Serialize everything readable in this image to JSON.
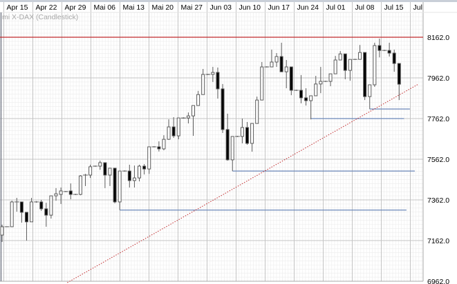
{
  "chart_data": {
    "type": "candlestick",
    "title": "mi X-DAX (Candlestick)",
    "x_tick_labels": [
      "Apr 15",
      "Apr 22",
      "Apr 29",
      "Mai 06",
      "Mai 13",
      "Mai 20",
      "Mai 27",
      "Jun 03",
      "Jun 10",
      "Jun 17",
      "Jun 24",
      "Jul 01",
      "Jul 08",
      "Jul 15",
      "Jul"
    ],
    "y_tick_labels": [
      "8162.0",
      "7962.0",
      "7762.0",
      "7562.0",
      "7362.0",
      "7162.0",
      "6962.0"
    ],
    "y_ticks": [
      8162,
      7962,
      7762,
      7562,
      7362,
      7162,
      6962
    ],
    "ylim": [
      6950,
      8280
    ],
    "grid": true,
    "candle_fields": [
      "open",
      "high",
      "low",
      "close"
    ],
    "candles": [
      [
        7189,
        7240,
        7155,
        7230
      ],
      [
        7230,
        7232,
        7228,
        7230
      ],
      [
        7230,
        7358,
        7228,
        7352
      ],
      [
        7352,
        7372,
        7304,
        7352
      ],
      [
        7352,
        7352,
        7250,
        7301
      ],
      [
        7301,
        7301,
        7162,
        7254
      ],
      [
        7254,
        7372,
        7254,
        7352
      ],
      [
        7352,
        7356,
        7348,
        7352
      ],
      [
        7352,
        7362,
        7308,
        7318
      ],
      [
        7318,
        7348,
        7230,
        7287
      ],
      [
        7287,
        7382,
        7270,
        7382
      ],
      [
        7382,
        7420,
        7358,
        7392
      ],
      [
        7389,
        7423,
        7342,
        7406
      ],
      [
        7403,
        7406,
        7400,
        7403
      ],
      [
        7406,
        7443,
        7365,
        7389
      ],
      [
        7389,
        7392,
        7386,
        7389
      ],
      [
        7389,
        7484,
        7385,
        7480
      ],
      [
        7484,
        7490,
        7430,
        7484
      ],
      [
        7484,
        7535,
        7470,
        7525
      ],
      [
        7528,
        7531,
        7525,
        7528
      ],
      [
        7528,
        7555,
        7510,
        7545
      ],
      [
        7545,
        7545,
        7420,
        7484
      ],
      [
        7484,
        7518,
        7430,
        7518
      ],
      [
        7518,
        7518,
        7345,
        7352
      ],
      [
        7352,
        7504,
        7312,
        7504
      ],
      [
        7504,
        7507,
        7501,
        7504
      ],
      [
        7504,
        7535,
        7423,
        7457
      ],
      [
        7457,
        7531,
        7423,
        7470
      ],
      [
        7470,
        7535,
        7453,
        7528
      ],
      [
        7528,
        7538,
        7487,
        7514
      ],
      [
        7514,
        7623,
        7490,
        7623
      ],
      [
        7623,
        7626,
        7620,
        7623
      ],
      [
        7623,
        7650,
        7600,
        7613
      ],
      [
        7613,
        7680,
        7606,
        7660
      ],
      [
        7660,
        7758,
        7657,
        7721
      ],
      [
        7721,
        7769,
        7667,
        7677
      ],
      [
        7677,
        7765,
        7660,
        7765
      ],
      [
        7765,
        7768,
        7762,
        7765
      ],
      [
        7765,
        7792,
        7738,
        7775
      ],
      [
        7775,
        7826,
        7677,
        7826
      ],
      [
        7826,
        7898,
        7826,
        7880
      ],
      [
        7880,
        8006,
        7880,
        7979
      ],
      [
        7979,
        7982,
        7976,
        7979
      ],
      [
        7979,
        8016,
        7942,
        7989
      ],
      [
        7989,
        8013,
        7860,
        7908
      ],
      [
        7908,
        7932,
        7691,
        7708
      ],
      [
        7708,
        7786,
        7555,
        7559
      ],
      [
        7559,
        7674,
        7504,
        7674
      ],
      [
        7674,
        7677,
        7671,
        7674
      ],
      [
        7674,
        7762,
        7640,
        7718
      ],
      [
        7718,
        7745,
        7633,
        7640
      ],
      [
        7640,
        7738,
        7599,
        7738
      ],
      [
        7738,
        7870,
        7738,
        7853
      ],
      [
        7853,
        8040,
        7853,
        8016
      ],
      [
        8016,
        8019,
        8013,
        8016
      ],
      [
        8016,
        8101,
        8016,
        8040
      ],
      [
        8040,
        8084,
        8016,
        8067
      ],
      [
        8067,
        8135,
        7992,
        7992
      ],
      [
        7992,
        8050,
        7911,
        8016
      ],
      [
        8016,
        8016,
        7877,
        7901
      ],
      [
        7901,
        7904,
        7898,
        7901
      ],
      [
        7901,
        7976,
        7837,
        7864
      ],
      [
        7864,
        7911,
        7826,
        7850
      ],
      [
        7850,
        7874,
        7758,
        7874
      ],
      [
        7874,
        7972,
        7874,
        7932
      ],
      [
        7932,
        8016,
        7887,
        7945
      ],
      [
        7945,
        7948,
        7942,
        7945
      ],
      [
        7945,
        7982,
        7921,
        7982
      ],
      [
        7982,
        8070,
        7982,
        8050
      ],
      [
        8050,
        8094,
        8050,
        8080
      ],
      [
        8080,
        8080,
        7955,
        7999
      ],
      [
        7999,
        8053,
        7948,
        8053
      ],
      [
        8053,
        8056,
        8050,
        8053
      ],
      [
        8053,
        8124,
        8053,
        8087
      ],
      [
        8087,
        8087,
        7853,
        7870
      ],
      [
        7870,
        7928,
        7809,
        7928
      ],
      [
        7928,
        8135,
        7918,
        8121
      ],
      [
        8121,
        8155,
        8063,
        8097
      ],
      [
        8097,
        8100,
        8094,
        8097
      ],
      [
        8097,
        8135,
        8067,
        8084
      ],
      [
        8084,
        8101,
        7992,
        8033
      ],
      [
        8033,
        8033,
        7853,
        7931
      ]
    ],
    "resistance_line": {
      "price": 8162,
      "color": "#c0282a"
    },
    "support_lines": [
      {
        "from_index": 24,
        "to_index": 82.5,
        "price": 7312
      },
      {
        "from_index": 47,
        "to_index": 84.2,
        "price": 7504
      },
      {
        "from_index": 63,
        "to_index": 82,
        "price": 7762
      },
      {
        "from_index": 75,
        "to_index": 83.2,
        "price": 7809
      }
    ],
    "trend_line": {
      "from_index": 13.3,
      "from_price": 6955,
      "to_index": 84.9,
      "to_price": 7931,
      "color": "#c0282a",
      "style": "dotted"
    },
    "colors": {
      "up_fill": "#ffffff",
      "down_fill": "#000000",
      "outline": "#5a5a5a",
      "support": "#6a86b8",
      "grid_major": "#c4c4c4",
      "grid_minor": "#ececec"
    }
  }
}
